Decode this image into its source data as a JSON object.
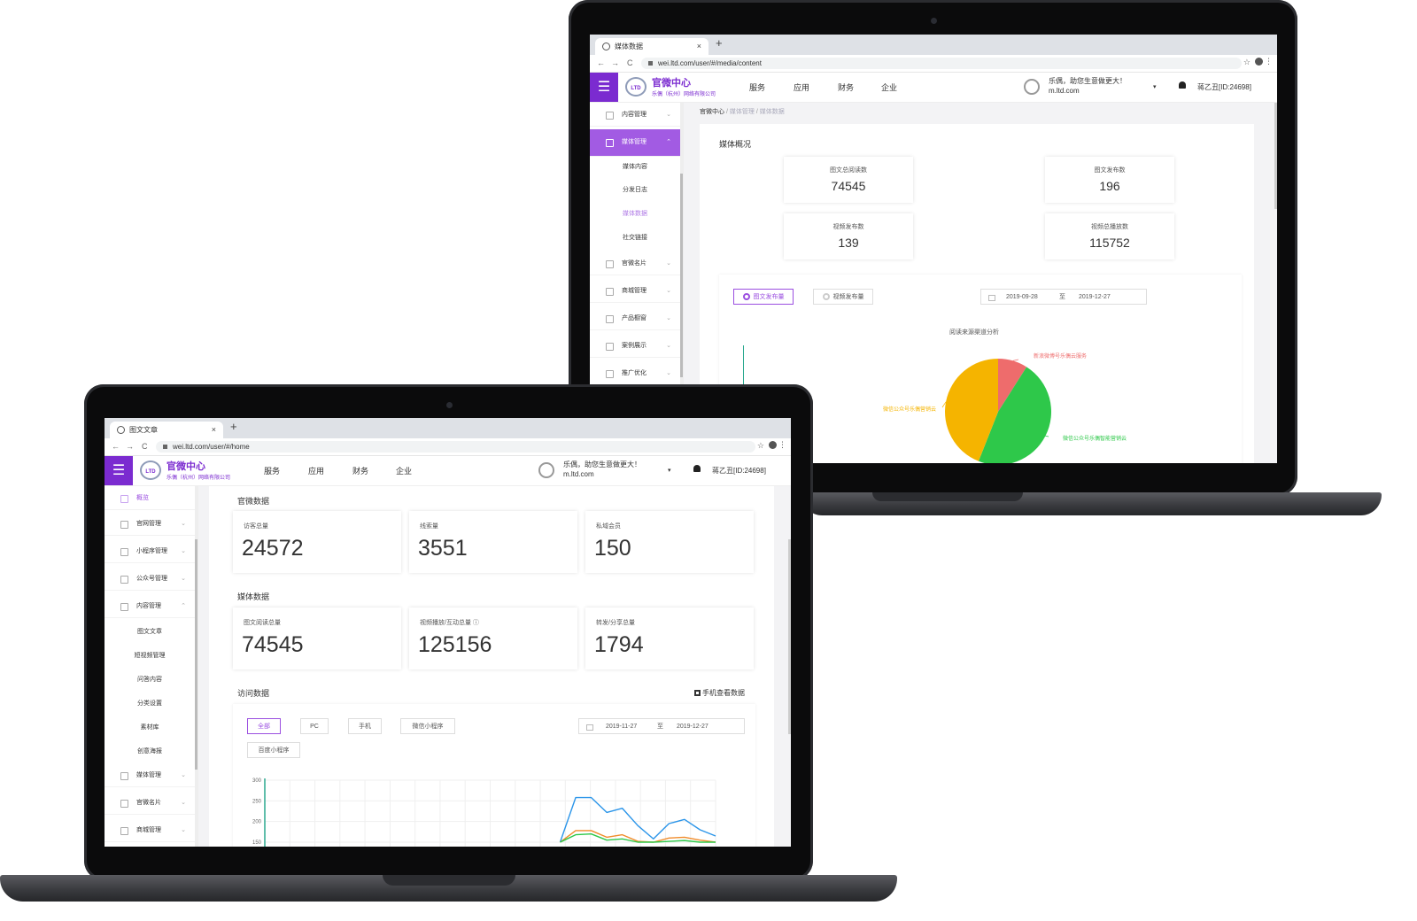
{
  "back_screen": {
    "browser": {
      "tab_title": "媒体数据",
      "tab_close": "×",
      "new_tab": "+",
      "url": "wei.ltd.com/user/#/media/content",
      "back": "←",
      "forward": "→",
      "reload": "C",
      "star": "☆",
      "more": "⋮"
    },
    "header": {
      "menu_glyph": "☰",
      "logo_text": "LTD",
      "brand": "官微中心",
      "brand_sub": "乐偶（杭州）网络有限公司",
      "nav": [
        "服务",
        "应用",
        "财务",
        "企业"
      ],
      "greeting": "乐偶，助您生意做更大！",
      "domain": "m.ltd.com",
      "caret": "▾",
      "user_id": "蒋乙丑[ID:24698]"
    },
    "sidebar": {
      "top_items": [
        {
          "label": "内容管理",
          "chevron": "⌄"
        },
        {
          "label": "媒体管理",
          "chevron": "⌃"
        }
      ],
      "sub_items": [
        "媒体内容",
        "分发日志",
        "媒体数据",
        "社交链接"
      ],
      "bottom_items": [
        {
          "label": "官微名片",
          "chevron": "⌄"
        },
        {
          "label": "商城管理",
          "chevron": "⌄"
        },
        {
          "label": "产品橱窗",
          "chevron": "⌄"
        },
        {
          "label": "案例展示",
          "chevron": "⌄"
        },
        {
          "label": "推广优化",
          "chevron": "⌄"
        }
      ]
    },
    "breadcrumb": [
      "官微中心",
      "/",
      "媒体管理",
      "/",
      "媒体数据"
    ],
    "overview_title": "媒体概况",
    "stats": [
      {
        "label": "图文总阅读数",
        "value": "74545"
      },
      {
        "label": "图文发布数",
        "value": "196"
      },
      {
        "label": "视频发布数",
        "value": "139"
      },
      {
        "label": "视频总播放数",
        "value": "115752"
      }
    ],
    "toggles": [
      "图文发布量",
      "视频发布量"
    ],
    "date_from": "2019-09-28",
    "date_sep": "至",
    "date_to": "2019-12-27",
    "pie": {
      "title": "阅读来源渠道分析",
      "slices": [
        {
          "name": "新浪微博号乐偶云服务",
          "share": 0.09,
          "color": "#ee6c6c"
        },
        {
          "name": "微信公众号乐偶智能营销云",
          "share": 0.47,
          "color": "#2ec84a"
        },
        {
          "name": "微信公众号乐偶营销云",
          "share": 0.44,
          "color": "#f5b400"
        }
      ]
    }
  },
  "front_screen": {
    "browser": {
      "tab_title": "图文文章",
      "tab_close": "×",
      "new_tab": "+",
      "url": "wei.ltd.com/user/#/home",
      "back": "←",
      "forward": "→",
      "reload": "C",
      "star": "☆",
      "more": "⋮"
    },
    "header": {
      "menu_glyph": "☰",
      "logo_text": "LTD",
      "brand": "官微中心",
      "brand_sub": "乐偶（杭州）网络有限公司",
      "nav": [
        "服务",
        "应用",
        "财务",
        "企业"
      ],
      "greeting": "乐偶，助您生意做更大！",
      "domain": "m.ltd.com",
      "caret": "▾",
      "user_id": "蒋乙丑[ID:24698]"
    },
    "sidebar": {
      "top_items": [
        {
          "label": "概览",
          "chevron": ""
        },
        {
          "label": "官网管理",
          "chevron": "⌄"
        },
        {
          "label": "小程序管理",
          "chevron": "⌄"
        },
        {
          "label": "公众号管理",
          "chevron": "⌄"
        },
        {
          "label": "内容管理",
          "chevron": "⌃"
        }
      ],
      "sub_items": [
        "图文文章",
        "短视频管理",
        "问答内容",
        "分类设置",
        "素材库",
        "创意海报"
      ],
      "bottom_items": [
        {
          "label": "媒体管理",
          "chevron": "⌄"
        },
        {
          "label": "官微名片",
          "chevron": "⌄"
        },
        {
          "label": "商城管理",
          "chevron": "⌄"
        }
      ]
    },
    "section_official": "官微数据",
    "official_stats": [
      {
        "label": "访客总量",
        "value": "24572"
      },
      {
        "label": "线索量",
        "value": "3551"
      },
      {
        "label": "私域会员",
        "value": "150"
      }
    ],
    "section_media": "媒体数据",
    "media_stats": [
      {
        "label": "图文阅读总量",
        "value": "74545"
      },
      {
        "label": "视频播放/互动总量 ⓘ",
        "value": "125156"
      },
      {
        "label": "转发/分享总量",
        "value": "1794"
      }
    ],
    "section_visit": "访问数据",
    "mobile_view": "手机查看数据",
    "filters": [
      "全部",
      "PC",
      "手机",
      "微信小程序",
      "百度小程序"
    ],
    "date_from": "2019-11-27",
    "date_sep": "至",
    "date_to": "2019-12-27",
    "chart_data": {
      "type": "line",
      "y_ticks": [
        "300",
        "250",
        "200",
        "150"
      ],
      "ylim": [
        150,
        300
      ],
      "x": [
        0,
        1,
        2,
        3,
        4,
        5,
        6,
        7,
        8,
        9,
        10,
        11,
        12,
        13,
        14,
        15,
        16,
        17,
        18,
        19,
        20,
        21,
        22,
        23,
        24,
        25,
        26,
        27,
        28,
        29
      ],
      "series": [
        {
          "color": "#2b95e9",
          "values": [
            null,
            null,
            null,
            null,
            null,
            null,
            null,
            null,
            null,
            null,
            null,
            null,
            null,
            null,
            null,
            null,
            null,
            null,
            null,
            150,
            258,
            258,
            222,
            232,
            190,
            158,
            195,
            205,
            180,
            165
          ]
        },
        {
          "color": "#f08c2c",
          "values": [
            null,
            null,
            null,
            null,
            null,
            null,
            null,
            null,
            null,
            null,
            null,
            null,
            null,
            null,
            null,
            null,
            null,
            null,
            null,
            150,
            178,
            178,
            162,
            168,
            152,
            150,
            160,
            162,
            155,
            150
          ]
        },
        {
          "color": "#2ec84a",
          "values": [
            null,
            null,
            null,
            null,
            null,
            null,
            null,
            null,
            null,
            null,
            null,
            null,
            null,
            null,
            null,
            null,
            null,
            null,
            null,
            150,
            168,
            170,
            155,
            158,
            150,
            150,
            152,
            154,
            150,
            150
          ]
        }
      ]
    }
  }
}
